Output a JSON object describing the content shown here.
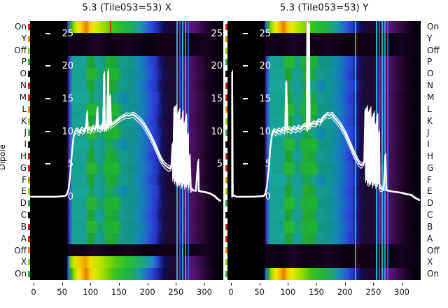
{
  "ylabel": "Dipole",
  "row_labels": [
    "On",
    "Y",
    "Off",
    "P",
    "O",
    "N",
    "M",
    "L",
    "K",
    "J",
    "I",
    "H",
    "G",
    "F",
    "E",
    "D",
    "C",
    "B",
    "A",
    "Off",
    "X",
    "On"
  ],
  "x_tick_labels": [
    "0",
    "50",
    "100",
    "150",
    "200",
    "250",
    "300"
  ],
  "x_tick_channels": [
    0,
    50,
    100,
    150,
    200,
    250,
    300
  ],
  "inner_y_tick_values": [
    25,
    20,
    15,
    10,
    5,
    0
  ],
  "inner_y_tick_labels": [
    "25",
    "20",
    "15",
    "10",
    "5",
    "0"
  ],
  "right_inner_tick_values": [
    25,
    20,
    15,
    10,
    5
  ],
  "right_inner_tick_labels": [
    "25",
    "20",
    "15",
    "10",
    "5"
  ],
  "colors": {
    "background": "#ffffff",
    "curve": "#ffffff",
    "text": "#111111",
    "rfi_cyan": "#38c8ea",
    "rfi_blue": "#2a66ff",
    "rfi_green": "#30d060",
    "marker_red": "#d82400",
    "marker_orange": "#e86000",
    "edge_marks": [
      "#d42010",
      "#e39000",
      "#9cd400",
      "#2ab03e",
      "#0a0a0a",
      "#c22010"
    ]
  },
  "chart_data": [
    {
      "panel": "X",
      "type": "heatmap",
      "title": "5.3 (Tile053=53) X",
      "x_range": [
        0,
        330
      ],
      "y_rows": [
        "On",
        "Y",
        "Off",
        "P",
        "O",
        "N",
        "M",
        "L",
        "K",
        "J",
        "I",
        "H",
        "G",
        "F",
        "E",
        "D",
        "C",
        "B",
        "A",
        "Off",
        "X",
        "On"
      ],
      "row_kinds": [
        "on",
        "off",
        "off",
        "dipA",
        "dipB",
        "dipA",
        "dipC",
        "dipB",
        "dipA",
        "dipB",
        "dipC",
        "dipA",
        "dipB",
        "dipA",
        "dipC",
        "dipB",
        "dipA",
        "dipB",
        "dipA",
        "off",
        "on2",
        "on"
      ],
      "overlay_db_ticks": [
        25,
        20,
        15,
        10,
        5,
        0
      ],
      "rfi_line_channels": [
        251,
        256,
        261,
        266,
        271
      ],
      "rfi_line_colors": [
        "#38c8ea",
        "#2a66ff",
        "#38c8ea",
        "#30b8e0",
        "#2a66ff"
      ],
      "marker_line": {
        "channel": 134,
        "color": "#d82400"
      },
      "line_series": {
        "name": "dipole response (dB)",
        "points": [
          [
            -6,
            0
          ],
          [
            40,
            0
          ],
          [
            55,
            0.1
          ],
          [
            58,
            0.3
          ],
          [
            61,
            1
          ],
          [
            64,
            3
          ],
          [
            67,
            6.5
          ],
          [
            70,
            9
          ],
          [
            73,
            10
          ],
          [
            76,
            10.2
          ],
          [
            80,
            9.8
          ],
          [
            84,
            10.3
          ],
          [
            88,
            10.0
          ],
          [
            92,
            10.5
          ],
          [
            94,
            12.8
          ],
          [
            95,
            10.2
          ],
          [
            98,
            10.4
          ],
          [
            101,
            10.1
          ],
          [
            104,
            10.6
          ],
          [
            107,
            10.3
          ],
          [
            110,
            10.7
          ],
          [
            112,
            13.4
          ],
          [
            113,
            10.4
          ],
          [
            115,
            10.6
          ],
          [
            118,
            10.3
          ],
          [
            120,
            11
          ],
          [
            122,
            10.5
          ],
          [
            124,
            18.8
          ],
          [
            125,
            10.4
          ],
          [
            127,
            10.8
          ],
          [
            129,
            10.5
          ],
          [
            131,
            19.2
          ],
          [
            132,
            10.6
          ],
          [
            134,
            15.3
          ],
          [
            136,
            10.9
          ],
          [
            139,
            11.1
          ],
          [
            143,
            11.3
          ],
          [
            147,
            11.6
          ],
          [
            151,
            11.9
          ],
          [
            155,
            12.1
          ],
          [
            159,
            12.3
          ],
          [
            163,
            12.5
          ],
          [
            167,
            12.4
          ],
          [
            171,
            12.5
          ],
          [
            175,
            12.6
          ],
          [
            179,
            12.3
          ],
          [
            183,
            12.0
          ],
          [
            187,
            11.7
          ],
          [
            191,
            11.3
          ],
          [
            195,
            10.8
          ],
          [
            199,
            10.2
          ],
          [
            203,
            9.6
          ],
          [
            207,
            8.9
          ],
          [
            211,
            8.2
          ],
          [
            215,
            7.4
          ],
          [
            219,
            6.6
          ],
          [
            223,
            5.8
          ],
          [
            227,
            5.2
          ],
          [
            231,
            4.8
          ],
          [
            235,
            4.5
          ],
          [
            239,
            4.3
          ],
          [
            242,
            4.6
          ],
          [
            244,
            8
          ],
          [
            245,
            2.8
          ],
          [
            247,
            13.5
          ],
          [
            248,
            2.4
          ],
          [
            250,
            13.8
          ],
          [
            251,
            2.1
          ],
          [
            253,
            12.6
          ],
          [
            254,
            1.9
          ],
          [
            256,
            13.2
          ],
          [
            257,
            2.2
          ],
          [
            259,
            11.6
          ],
          [
            260,
            1.7
          ],
          [
            262,
            12.9
          ],
          [
            263,
            2.0
          ],
          [
            265,
            11.2
          ],
          [
            266,
            1.6
          ],
          [
            268,
            12.3
          ],
          [
            269,
            1.9
          ],
          [
            271,
            9.4
          ],
          [
            272,
            1.4
          ],
          [
            274,
            6.2
          ],
          [
            276,
            1.1
          ],
          [
            280,
            1.0
          ],
          [
            285,
            0.9
          ],
          [
            289,
            5.4
          ],
          [
            290,
            0.9
          ],
          [
            295,
            0.8
          ],
          [
            302,
            0.7
          ],
          [
            310,
            0.5
          ],
          [
            318,
            0.1
          ],
          [
            324,
            -0.4
          ],
          [
            328,
            -0.6
          ]
        ]
      }
    },
    {
      "panel": "Y",
      "type": "heatmap",
      "title": "5.3 (Tile053=53) Y",
      "x_range": [
        0,
        330
      ],
      "y_rows": [
        "On",
        "Y",
        "Off",
        "P",
        "O",
        "N",
        "M",
        "L",
        "K",
        "J",
        "I",
        "H",
        "G",
        "F",
        "E",
        "D",
        "C",
        "B",
        "A",
        "Off",
        "X",
        "On"
      ],
      "row_kinds": [
        "on",
        "off",
        "off",
        "dipB",
        "dipA",
        "dipC",
        "dipA",
        "dipB",
        "dipA",
        "dipC",
        "dipB",
        "dipA",
        "dipB",
        "dipC",
        "dipA",
        "dipB",
        "dipA",
        "dipB",
        "dipA",
        "off",
        "off",
        "on"
      ],
      "overlay_db_ticks": [
        25,
        20,
        15,
        10,
        5,
        0
      ],
      "rfi_line_channels": [
        217,
        255,
        259,
        264,
        269,
        274
      ],
      "rfi_line_colors": [
        "#30d060",
        "#38c8ea",
        "#2a66ff",
        "#38c8ea",
        "#30b8e0",
        "#2a66ff"
      ],
      "marker_line": {
        "channel": 131,
        "color": "#e86000"
      },
      "line_series": {
        "name": "dipole response (dB)",
        "points": [
          [
            2,
            0
          ],
          [
            2,
            19
          ],
          [
            3,
            0.2
          ],
          [
            10,
            0
          ],
          [
            40,
            0
          ],
          [
            57,
            0.1
          ],
          [
            60,
            0.4
          ],
          [
            63,
            1.5
          ],
          [
            66,
            4
          ],
          [
            69,
            7.5
          ],
          [
            72,
            9.6
          ],
          [
            75,
            10.1
          ],
          [
            79,
            9.8
          ],
          [
            83,
            10.2
          ],
          [
            87,
            9.9
          ],
          [
            91,
            10.3
          ],
          [
            95,
            10.0
          ],
          [
            97,
            17.4
          ],
          [
            99,
            10.2
          ],
          [
            102,
            10.4
          ],
          [
            106,
            10.1
          ],
          [
            110,
            10.5
          ],
          [
            114,
            10.2
          ],
          [
            118,
            10.6
          ],
          [
            122,
            10.3
          ],
          [
            126,
            10.7
          ],
          [
            130,
            10.9
          ],
          [
            133,
            10.6
          ],
          [
            134,
            26.8
          ],
          [
            135,
            10.4
          ],
          [
            136,
            10.8
          ],
          [
            137,
            26.4
          ],
          [
            138,
            10.7
          ],
          [
            141,
            11.0
          ],
          [
            145,
            11.3
          ],
          [
            149,
            11.1
          ],
          [
            153,
            11.6
          ],
          [
            157,
            11.4
          ],
          [
            161,
            12.0
          ],
          [
            165,
            12.3
          ],
          [
            169,
            12.6
          ],
          [
            173,
            12.4
          ],
          [
            177,
            12.6
          ],
          [
            181,
            12.1
          ],
          [
            185,
            11.7
          ],
          [
            189,
            11.3
          ],
          [
            193,
            10.8
          ],
          [
            197,
            10.2
          ],
          [
            201,
            9.6
          ],
          [
            205,
            8.8
          ],
          [
            209,
            8.0
          ],
          [
            213,
            7.2
          ],
          [
            217,
            6.4
          ],
          [
            221,
            5.7
          ],
          [
            225,
            5.1
          ],
          [
            229,
            4.8
          ],
          [
            232,
            5.0
          ],
          [
            234,
            5.3
          ],
          [
            236,
            13.2
          ],
          [
            237,
            2.6
          ],
          [
            239,
            13.6
          ],
          [
            240,
            2.2
          ],
          [
            242,
            12.9
          ],
          [
            243,
            2.0
          ],
          [
            245,
            13.4
          ],
          [
            246,
            2.3
          ],
          [
            248,
            12.0
          ],
          [
            249,
            1.8
          ],
          [
            251,
            12.7
          ],
          [
            252,
            2.1
          ],
          [
            254,
            11.0
          ],
          [
            255,
            1.7
          ],
          [
            257,
            12.4
          ],
          [
            258,
            2.0
          ],
          [
            260,
            9.7
          ],
          [
            261,
            1.5
          ],
          [
            264,
            1.2
          ],
          [
            268,
            1.0
          ],
          [
            271,
            6.3
          ],
          [
            273,
            1.0
          ],
          [
            278,
            0.9
          ],
          [
            284,
            0.8
          ],
          [
            292,
            0.7
          ],
          [
            300,
            0.6
          ],
          [
            308,
            0.4
          ],
          [
            316,
            0.3
          ],
          [
            324,
            -0.2
          ],
          [
            331,
            -0.5
          ]
        ]
      }
    }
  ]
}
